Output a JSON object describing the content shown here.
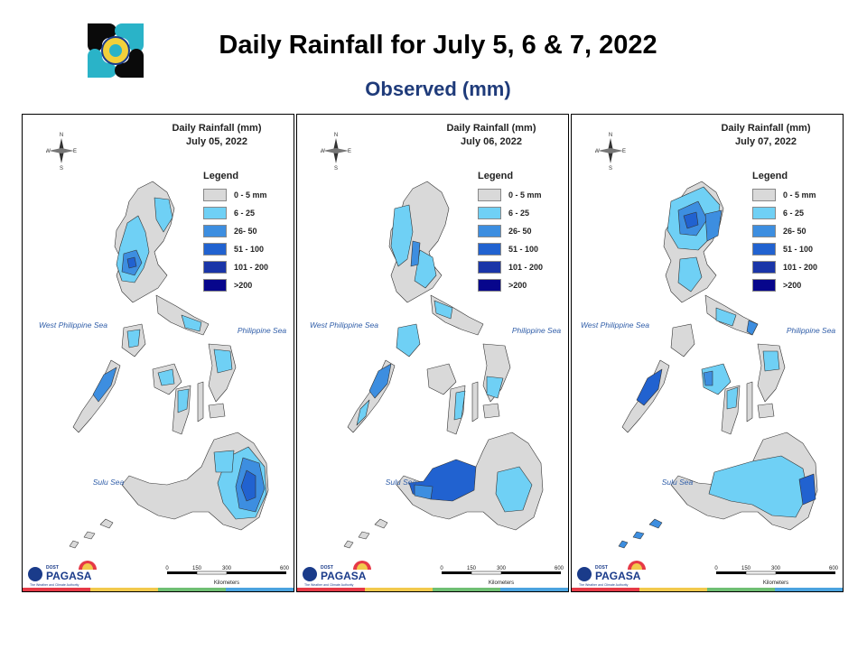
{
  "header": {
    "title": "Daily Rainfall for July 5, 6 & 7, 2022",
    "subtitle": "Observed (mm)",
    "logo_icon": "pagasa-dost-seal-icon"
  },
  "legend": {
    "title": "Legend",
    "classes": [
      {
        "label": "0 - 5 mm",
        "color": "#d9d9d9"
      },
      {
        "label": "6 - 25",
        "color": "#6fd0f5"
      },
      {
        "label": "26- 50",
        "color": "#3d8ee0"
      },
      {
        "label": "51 - 100",
        "color": "#2162d0"
      },
      {
        "label": "101 - 200",
        "color": "#1a35a8"
      },
      {
        "label": ">200",
        "color": "#07068c"
      }
    ]
  },
  "labels": {
    "west_sea": "West Philippine Sea",
    "philippine_sea": "Philippine Sea",
    "sulu_sea": "Sulu Sea",
    "compass_n": "N",
    "compass_s": "S",
    "compass_e": "E",
    "compass_w": "W",
    "scale_ticks": [
      "0",
      "150",
      "300",
      "600"
    ],
    "scale_unit": "Kilometers",
    "agency_small": "DOST",
    "agency": "PAGASA",
    "agency_tagline": "The Weather and Climate Authority"
  },
  "panels": [
    {
      "title_line1": "Daily Rainfall (mm)",
      "title_line2": "July 05, 2022"
    },
    {
      "title_line1": "Daily Rainfall (mm)",
      "title_line2": "July 06, 2022"
    },
    {
      "title_line1": "Daily Rainfall (mm)",
      "title_line2": "July 07, 2022"
    }
  ],
  "strip_colors": [
    "#e63946",
    "#f2c94c",
    "#6fbf73",
    "#4aa3df"
  ]
}
